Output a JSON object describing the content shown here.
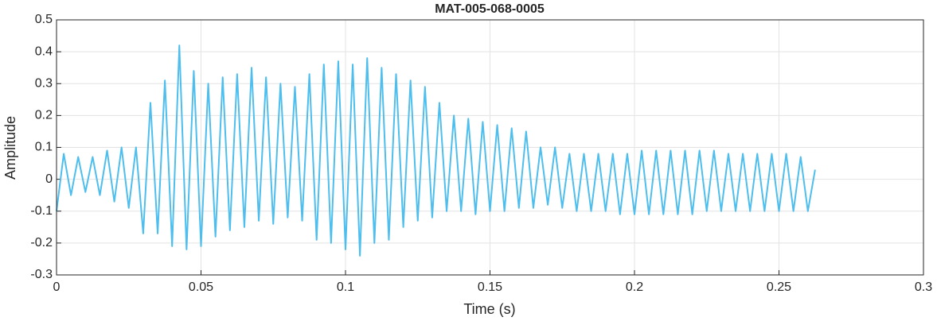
{
  "chart_data": {
    "type": "line",
    "title": "MAT-005-068-0005",
    "x_label": "Time (s)",
    "y_label": "Amplitude",
    "x": [
      0,
      0.0025,
      0.005,
      0.0075,
      0.01,
      0.0125,
      0.015,
      0.0175,
      0.02,
      0.0225,
      0.025,
      0.0275,
      0.03,
      0.0325,
      0.035,
      0.0375,
      0.04,
      0.0425,
      0.045,
      0.0475,
      0.05,
      0.0525,
      0.055,
      0.0575,
      0.06,
      0.0625,
      0.065,
      0.0675,
      0.07,
      0.0725,
      0.075,
      0.0775,
      0.08,
      0.0825,
      0.085,
      0.0875,
      0.09,
      0.0925,
      0.095,
      0.0975,
      0.1,
      0.1025,
      0.105,
      0.1075,
      0.11,
      0.1125,
      0.115,
      0.1175,
      0.12,
      0.1225,
      0.125,
      0.1275,
      0.13,
      0.1325,
      0.135,
      0.1375,
      0.14,
      0.1425,
      0.145,
      0.1475,
      0.15,
      0.1525,
      0.155,
      0.1575,
      0.16,
      0.1625,
      0.165,
      0.1675,
      0.17,
      0.1725,
      0.175,
      0.1775,
      0.18,
      0.1825,
      0.185,
      0.1875,
      0.19,
      0.1925,
      0.195,
      0.1975,
      0.2,
      0.2025,
      0.205,
      0.2075,
      0.21,
      0.2125,
      0.215,
      0.2175,
      0.22,
      0.2225,
      0.225,
      0.2275,
      0.23,
      0.2325,
      0.235,
      0.2375,
      0.24,
      0.2425,
      0.245,
      0.2475,
      0.25,
      0.2525,
      0.255,
      0.2575,
      0.26,
      0.2625
    ],
    "series": [
      {
        "color": "#4dbeee",
        "values": [
          -0.1,
          0.08,
          -0.05,
          0.07,
          -0.04,
          0.07,
          -0.05,
          0.09,
          -0.07,
          0.1,
          -0.09,
          0.1,
          -0.17,
          0.24,
          -0.17,
          0.31,
          -0.21,
          0.42,
          -0.22,
          0.34,
          -0.21,
          0.3,
          -0.18,
          0.32,
          -0.16,
          0.33,
          -0.15,
          0.35,
          -0.13,
          0.32,
          -0.14,
          0.3,
          -0.12,
          0.29,
          -0.13,
          0.33,
          -0.19,
          0.36,
          -0.2,
          0.37,
          -0.22,
          0.36,
          -0.24,
          0.38,
          -0.2,
          0.35,
          -0.19,
          0.33,
          -0.15,
          0.31,
          -0.13,
          0.29,
          -0.12,
          0.24,
          -0.1,
          0.2,
          -0.1,
          0.19,
          -0.11,
          0.18,
          -0.1,
          0.17,
          -0.1,
          0.16,
          -0.09,
          0.15,
          -0.09,
          0.1,
          -0.08,
          0.1,
          -0.09,
          0.08,
          -0.1,
          0.08,
          -0.1,
          0.08,
          -0.1,
          0.08,
          -0.11,
          0.08,
          -0.11,
          0.09,
          -0.11,
          0.09,
          -0.11,
          0.09,
          -0.11,
          0.09,
          -0.11,
          0.09,
          -0.1,
          0.09,
          -0.1,
          0.08,
          -0.1,
          0.08,
          -0.1,
          0.08,
          -0.1,
          0.08,
          -0.1,
          0.08,
          -0.1,
          0.07,
          -0.1,
          0.03
        ]
      }
    ],
    "xlim": [
      0,
      0.3
    ],
    "xticks": [
      0,
      0.05,
      0.1,
      0.15,
      0.2,
      0.25,
      0.3
    ],
    "ylim": [
      -0.3,
      0.5
    ],
    "yticks": [
      -0.3,
      -0.2,
      -0.1,
      0,
      0.1,
      0.2,
      0.3,
      0.4,
      0.5
    ],
    "grid": true
  }
}
